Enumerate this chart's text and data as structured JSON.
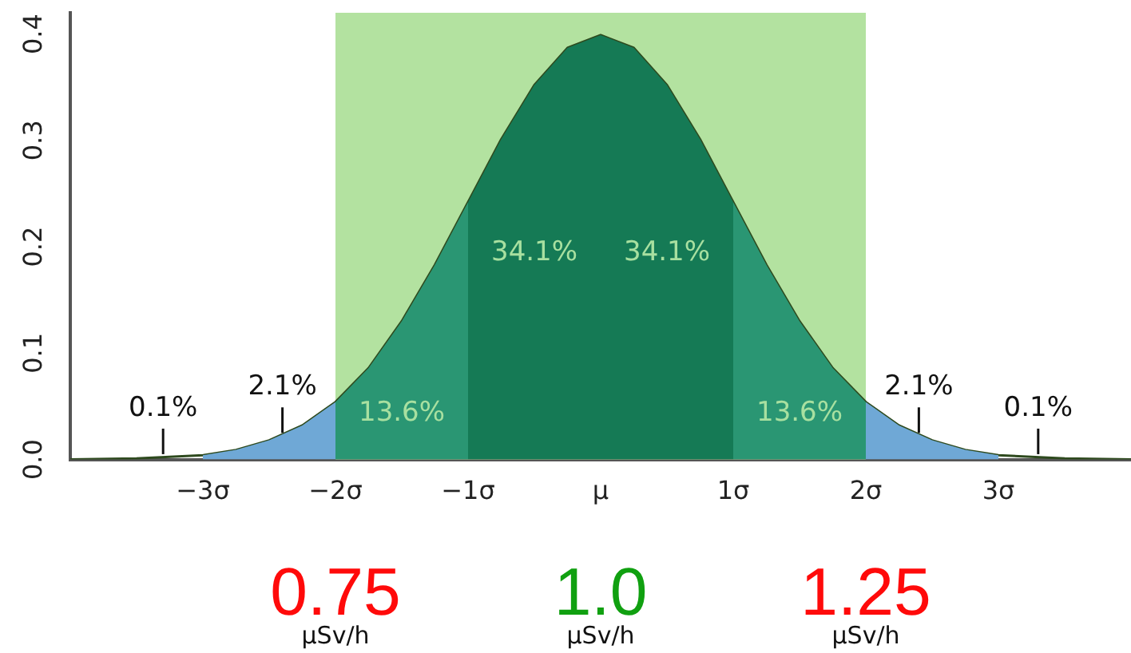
{
  "chart_data": {
    "type": "area",
    "xlim": [
      -4,
      4
    ],
    "ylim": [
      0,
      0.42
    ],
    "xticks": [
      {
        "value": -3,
        "label": "−3σ"
      },
      {
        "value": -2,
        "label": "−2σ"
      },
      {
        "value": -1,
        "label": "−1σ"
      },
      {
        "value": 0,
        "label": "μ"
      },
      {
        "value": 1,
        "label": "1σ"
      },
      {
        "value": 2,
        "label": "2σ"
      },
      {
        "value": 3,
        "label": "3σ"
      }
    ],
    "yticks": [
      {
        "value": 0,
        "label": "0.0"
      },
      0.1,
      0.2,
      0.3,
      0.4
    ],
    "grid": false,
    "legend": false,
    "bands": [
      {
        "axis": "x",
        "from": -2,
        "to": 2,
        "color": "#b3e2a0"
      }
    ],
    "series": [
      {
        "type": "area",
        "color": "#6fa8d6",
        "x": [
          -3,
          -2.75,
          -2.5,
          -2.25,
          -2
        ],
        "values": [
          0.004,
          0.009,
          0.018,
          0.032,
          0.054
        ]
      },
      {
        "type": "area",
        "color": "#2a9673",
        "x": [
          -2,
          -1.75,
          -1.5,
          -1.25,
          -1
        ],
        "values": [
          0.054,
          0.086,
          0.13,
          0.183,
          0.242
        ]
      },
      {
        "type": "area",
        "color": "#157a55",
        "x": [
          -1,
          -0.75,
          -0.5,
          -0.25,
          0
        ],
        "values": [
          0.242,
          0.301,
          0.352,
          0.387,
          0.399
        ]
      },
      {
        "type": "area",
        "color": "#157a55",
        "x": [
          0,
          0.25,
          0.5,
          0.75,
          1
        ],
        "values": [
          0.399,
          0.387,
          0.352,
          0.301,
          0.242
        ]
      },
      {
        "type": "area",
        "color": "#2a9673",
        "x": [
          1,
          1.25,
          1.5,
          1.75,
          2
        ],
        "values": [
          0.242,
          0.183,
          0.13,
          0.086,
          0.054
        ]
      },
      {
        "type": "area",
        "color": "#6fa8d6",
        "x": [
          2,
          2.25,
          2.5,
          2.75,
          3
        ],
        "values": [
          0.054,
          0.032,
          0.018,
          0.009,
          0.004
        ]
      },
      {
        "type": "line",
        "color": "#2e4a1e",
        "x": [
          -4,
          -3.5,
          -3,
          -2.75,
          -2.5,
          -2.25,
          -2,
          -1.75,
          -1.5,
          -1.25,
          -1,
          -0.75,
          -0.5,
          -0.25,
          0,
          0.25,
          0.5,
          0.75,
          1,
          1.25,
          1.5,
          1.75,
          2,
          2.25,
          2.5,
          2.75,
          3,
          3.5,
          4
        ],
        "values": [
          0,
          0.001,
          0.004,
          0.009,
          0.018,
          0.032,
          0.054,
          0.086,
          0.13,
          0.183,
          0.242,
          0.301,
          0.352,
          0.387,
          0.399,
          0.387,
          0.352,
          0.301,
          0.242,
          0.183,
          0.13,
          0.086,
          0.054,
          0.032,
          0.018,
          0.009,
          0.004,
          0.001,
          0
        ]
      }
    ],
    "annotations": [
      {
        "text": "0.1%",
        "x": -3.3,
        "y": 0.002
      },
      {
        "text": "2.1%",
        "x": -2.4,
        "y": 0.022
      },
      "13.6%",
      "34.1%",
      "34.1%",
      "13.6%",
      {
        "text": "2.1%",
        "x": 2.4,
        "y": 0.022
      },
      {
        "text": "0.1%",
        "x": 3.3,
        "y": 0.002
      },
      "0.75",
      "μSv/h",
      "1.0",
      "μSv/h",
      "1.25",
      "μSv/h"
    ]
  }
}
